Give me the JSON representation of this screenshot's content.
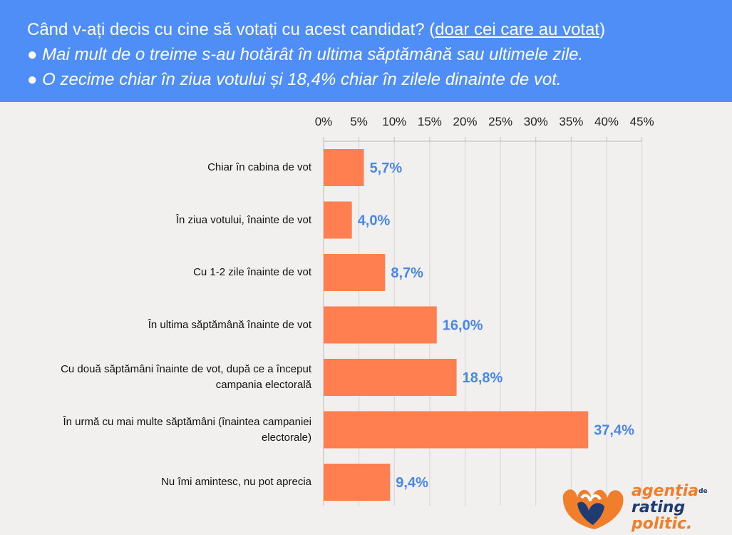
{
  "header": {
    "line1_main": "Când v-ați decis cu cine să votați cu acest candidat? (",
    "line1_underlined": "doar cei care au votat",
    "line1_close": ")",
    "line2": "● Mai mult de o treime s-au hotărât în ultima săptămână sau ultimele zile.",
    "line3": "● O zecime chiar în ziua votului și 18,4% chiar în zilele dinainte de vot."
  },
  "chart_data": {
    "type": "bar",
    "orientation": "horizontal",
    "categories": [
      "Chiar în cabina de vot",
      "În ziua votului, înainte de vot",
      "Cu 1-2 zile înainte de vot",
      "În ultima săptămână înainte de vot",
      "Cu două săptămâni înainte de vot, după ce a început campania electorală",
      "În urmă cu mai multe săptămâni (înaintea campaniei electorale)",
      "Nu îmi amintesc, nu pot aprecia"
    ],
    "category_lines": [
      [
        "Chiar în cabina de vot"
      ],
      [
        "În ziua votului, înainte de vot"
      ],
      [
        "Cu 1-2 zile înainte de vot"
      ],
      [
        "În ultima săptămână înainte de vot"
      ],
      [
        "Cu două săptămâni înainte de vot, după ce a început",
        "campania electorală"
      ],
      [
        "În urmă cu mai multe săptămâni (înaintea campaniei",
        "electorale)"
      ],
      [
        "Nu îmi amintesc, nu pot aprecia"
      ]
    ],
    "values": [
      5.7,
      4.0,
      8.7,
      16.0,
      18.8,
      37.4,
      9.4
    ],
    "value_labels": [
      "5,7%",
      "4,0%",
      "8,7%",
      "16,0%",
      "18,8%",
      "37,4%",
      "9,4%"
    ],
    "xlim": [
      0,
      45
    ],
    "ticks": [
      0,
      5,
      10,
      15,
      20,
      25,
      30,
      35,
      40,
      45
    ],
    "tick_labels": [
      "0%",
      "5%",
      "10%",
      "15%",
      "20%",
      "25%",
      "30%",
      "35%",
      "40%",
      "45%"
    ],
    "axis_position": "top",
    "grid": true,
    "bar_color": "#ff7f50",
    "label_color": "#4a86e8"
  },
  "logo": {
    "line1": "agenția",
    "small": "de",
    "line2": "rating",
    "line3": "politic."
  },
  "colors": {
    "header_bg": "#4f8ef7",
    "background": "#f1f0ef",
    "logo_orange": "#f07e2a",
    "logo_navy": "#1f3b73"
  }
}
